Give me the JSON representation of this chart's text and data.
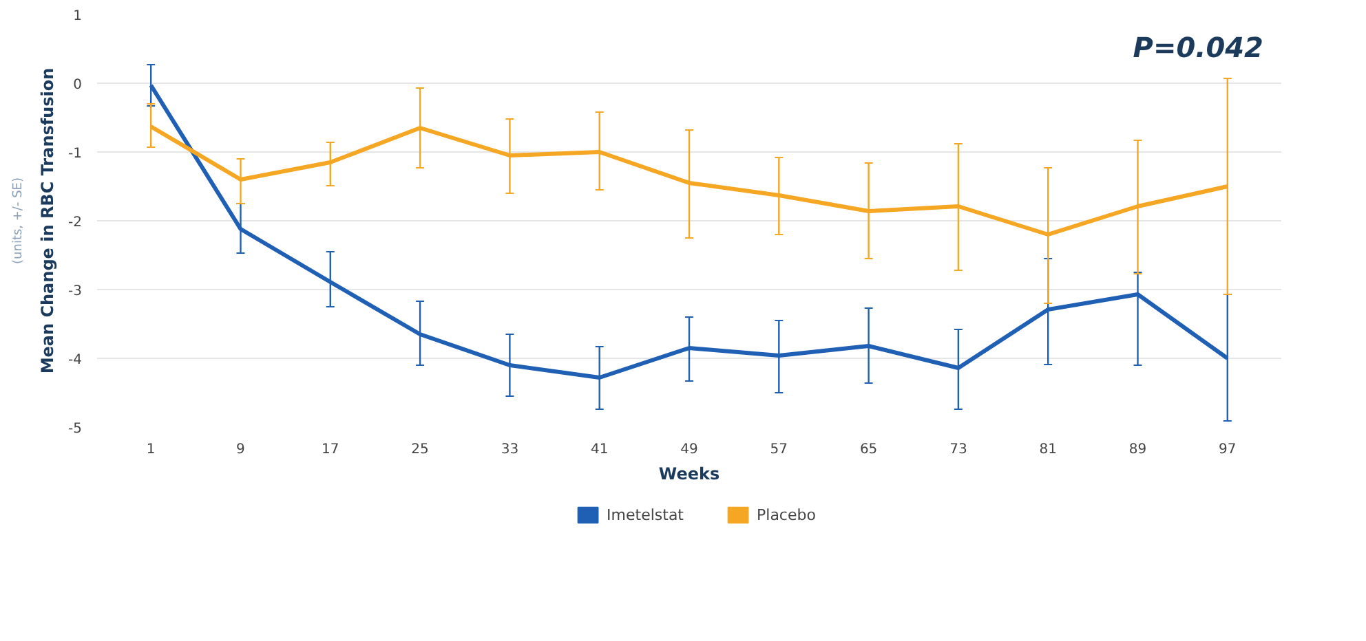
{
  "chart_data": {
    "type": "line",
    "xlabel": "Weeks",
    "ylabel": "Mean Change in RBC Transfusion\n(units, +/- SE)",
    "categories": [
      "1",
      "9",
      "17",
      "25",
      "33",
      "41",
      "49",
      "57",
      "65",
      "73",
      "81",
      "89",
      "97"
    ],
    "series": [
      {
        "name": "Imetelstat",
        "color": "#1f5fb4",
        "values": [
          -0.03,
          -2.12,
          -2.89,
          -3.65,
          -4.1,
          -4.28,
          -3.85,
          -3.96,
          -3.82,
          -4.14,
          -3.29,
          -3.07,
          -4.0
        ],
        "errors": [
          [
            -0.33,
            0.27
          ],
          [
            -2.47,
            -1.75
          ],
          [
            -3.25,
            -2.45
          ],
          [
            -4.1,
            -3.17
          ],
          [
            -4.55,
            -3.65
          ],
          [
            -4.74,
            -3.83
          ],
          [
            -4.33,
            -3.4
          ],
          [
            -4.5,
            -3.45
          ],
          [
            -4.36,
            -3.27
          ],
          [
            -4.74,
            -3.58
          ],
          [
            -4.09,
            -2.55
          ],
          [
            -4.1,
            -2.75
          ],
          [
            -4.91,
            -3.07
          ]
        ]
      },
      {
        "name": "Placebo",
        "color": "#f5a623",
        "values": [
          -0.63,
          -1.4,
          -1.15,
          -0.65,
          -1.05,
          -1.0,
          -1.45,
          -1.63,
          -1.86,
          -1.79,
          -2.2,
          -1.79,
          -1.5
        ],
        "errors": [
          [
            -0.93,
            -0.3
          ],
          [
            -1.75,
            -1.1
          ],
          [
            -1.49,
            -0.86
          ],
          [
            -1.23,
            -0.07
          ],
          [
            -1.6,
            -0.52
          ],
          [
            -1.55,
            -0.42
          ],
          [
            -2.25,
            -0.68
          ],
          [
            -2.2,
            -1.08
          ],
          [
            -2.55,
            -1.16
          ],
          [
            -2.72,
            -0.88
          ],
          [
            -3.2,
            -1.23
          ],
          [
            -2.77,
            -0.83
          ],
          [
            -3.07,
            0.07
          ]
        ]
      }
    ],
    "annotations": [
      "P=0.042"
    ],
    "ylim": [
      -5,
      1
    ],
    "yticks": [
      -5,
      -4,
      -3,
      -2,
      -1,
      0,
      1
    ],
    "grid": "y",
    "legend": "bottom"
  }
}
